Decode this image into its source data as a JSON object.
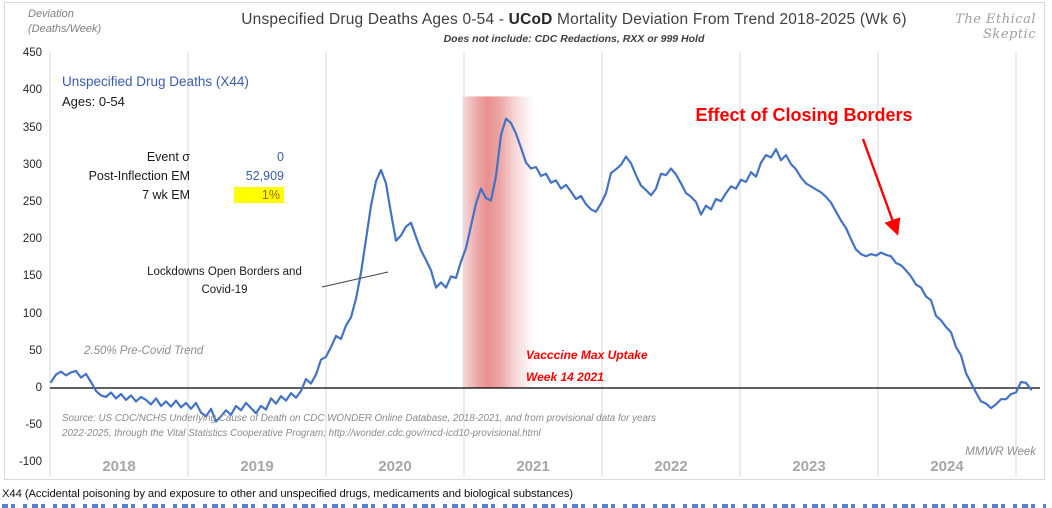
{
  "header": {
    "y_axis_label_line1": "Deviation",
    "y_axis_label_line2": "(Deaths/Week)",
    "title_part1": "Unspecified Drug Deaths Ages 0-54 - ",
    "title_bold": "UCoD",
    "title_part2": " Mortality Deviation From Trend  2018-2025 (Wk 6)",
    "subtitle": "Does not include: CDC Redactions,  RXX or 999 Hold",
    "watermark": "The Ethical Skeptic"
  },
  "legend": {
    "series_label": "Unspecified Drug Deaths (X44)",
    "ages_label": "Ages: 0-54",
    "stats": [
      {
        "label": "Event σ",
        "value": "0",
        "highlight": false
      },
      {
        "label": "Post-Inflection EM",
        "value": "52,909",
        "highlight": false
      },
      {
        "label": "7 wk EM",
        "value": "1%",
        "highlight": true
      }
    ]
  },
  "source": {
    "line1": "Source: US CDC/NCHS Underlying Cause of Death on CDC WONDER Online Database, 2018-2021, and from provisional data for years",
    "line2": "2022-2025, through the Vital Statistics Cooperative Program; http://wonder.cdc.gov/mcd-icd10-provisional.html"
  },
  "footnote": "X44 (Accidental poisoning  by and exposure  to other and unspecified  drugs, medicaments and biological substances)",
  "colors": {
    "line": "#4472C4",
    "band": "#D94A4A",
    "annotation_red": "#FF0000",
    "legend_blue": "#3A5DA9",
    "highlight_fill": "#FFFF00",
    "highlight_text": "#9C6500",
    "gridline": "#D9D9D9",
    "muted_gray": "#8C8C8C"
  },
  "chart_data": {
    "type": "line",
    "title": "Unspecified Drug Deaths Ages 0-54 - UCoD Mortality Deviation From Trend 2018-2025 (Wk 6)",
    "subtitle": "Does not include: CDC Redactions, RXX or 999 Hold",
    "ylabel": "Deviation (Deaths/Week)",
    "xlabel": "MMWR Week",
    "ylim": [
      -100,
      450
    ],
    "xlim_years": [
      2018,
      2025.2
    ],
    "y_ticks": [
      450,
      400,
      350,
      300,
      250,
      200,
      150,
      100,
      50,
      0,
      -50,
      -100
    ],
    "x_year_labels": [
      "2018",
      "2019",
      "2020",
      "2021",
      "2022",
      "2023",
      "2024"
    ],
    "grid": "vertical year gridlines only, black zero line",
    "legend_position": "top-left",
    "series": [
      {
        "name": "Unspecified Drug Deaths (X44) Ages 0-54",
        "color": "#4472C4",
        "x_start_year": 2018.007,
        "x_step_years": 0.036232,
        "values": [
          8,
          18,
          22,
          17,
          21,
          23,
          14,
          19,
          8,
          -4,
          -10,
          -12,
          -6,
          -14,
          -8,
          -16,
          -10,
          -18,
          -12,
          -16,
          -22,
          -14,
          -24,
          -18,
          -25,
          -17,
          -26,
          -20,
          -28,
          -20,
          -33,
          -38,
          -28,
          -45,
          -38,
          -30,
          -36,
          -24,
          -30,
          -20,
          -27,
          -34,
          -24,
          -29,
          -14,
          -21,
          -11,
          -17,
          -7,
          -13,
          -4,
          12,
          6,
          18,
          38,
          42,
          55,
          70,
          66,
          84,
          95,
          120,
          155,
          200,
          245,
          278,
          293,
          275,
          235,
          198,
          205,
          217,
          222,
          203,
          185,
          172,
          158,
          135,
          142,
          135,
          150,
          148,
          170,
          188,
          218,
          248,
          268,
          255,
          252,
          285,
          340,
          362,
          356,
          342,
          323,
          303,
          295,
          297,
          285,
          288,
          276,
          279,
          268,
          273,
          264,
          254,
          258,
          247,
          240,
          237,
          248,
          262,
          289,
          294,
          300,
          311,
          302,
          286,
          272,
          266,
          259,
          268,
          288,
          286,
          295,
          287,
          275,
          262,
          257,
          250,
          233,
          245,
          240,
          254,
          251,
          262,
          271,
          268,
          280,
          277,
          290,
          284,
          303,
          313,
          310,
          321,
          306,
          313,
          301,
          294,
          283,
          275,
          271,
          267,
          263,
          257,
          249,
          237,
          225,
          215,
          200,
          186,
          180,
          177,
          180,
          178,
          182,
          179,
          177,
          168,
          165,
          158,
          150,
          139,
          135,
          123,
          118,
          97,
          91,
          82,
          75,
          55,
          44,
          20,
          7,
          -6,
          -18,
          -21,
          -27,
          -22,
          -15,
          -15,
          -8,
          -6,
          8,
          7,
          -2
        ]
      }
    ],
    "band": {
      "label": "Vacccine Max Uptake Week 14 2021",
      "x_start_year": 2020.99,
      "x_end_year": 2021.51,
      "y_from": 0,
      "y_to": 392,
      "color": "#D94A4A"
    },
    "annotations": {
      "closing_borders": {
        "text": "Effect of Closing Borders",
        "color": "#FF0000",
        "arrow_to_year": 2024.14,
        "arrow_to_value": 205
      },
      "lockdowns": {
        "line1": "Lockdowns Open Borders and",
        "line2": "Covid-19",
        "points_to_year": 2020.45,
        "points_to_value": 155
      },
      "pre_covid": {
        "text": "2.50% Pre-Covid Trend"
      },
      "vaccine": {
        "line1": "Vacccine Max Uptake",
        "line2": "Week 14 2021",
        "color": "#FF0000"
      },
      "mmwr": {
        "text": "MMWR Week"
      }
    }
  }
}
